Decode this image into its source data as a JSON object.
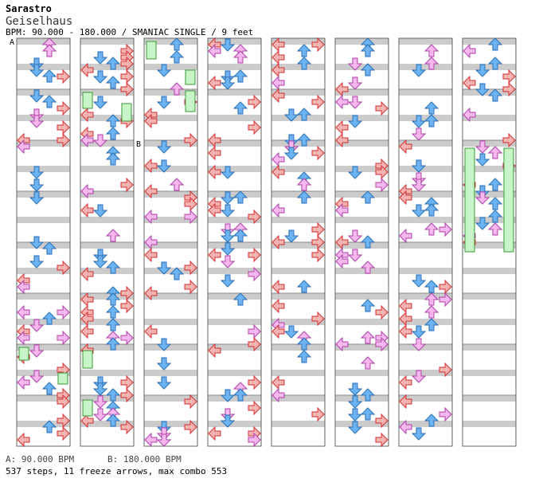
{
  "artist": "Sarastro",
  "title": "Geiselhaus",
  "info_line": "BPM: 90.000 - 180.000 / SMANIAC SINGLE / 9 feet",
  "bpm_changes": [
    {
      "marker": "A",
      "label": "A: 90.000 BPM"
    },
    {
      "marker": "B",
      "label": "B: 180.000 BPM"
    }
  ],
  "stats": "537 steps, 11 freeze arrows, max combo 553",
  "columns": 8,
  "colors": {
    "left_right_arrow": "#f7b2b2",
    "down_up_arrow": "#6db3ee",
    "purple_arrow": "#f4b8ef",
    "freeze": "#c7f5c7",
    "stripe": "#cccccc"
  },
  "icons": [
    "left-arrow-icon",
    "down-arrow-icon",
    "up-arrow-icon",
    "right-arrow-icon",
    "freeze-arrow-icon"
  ]
}
